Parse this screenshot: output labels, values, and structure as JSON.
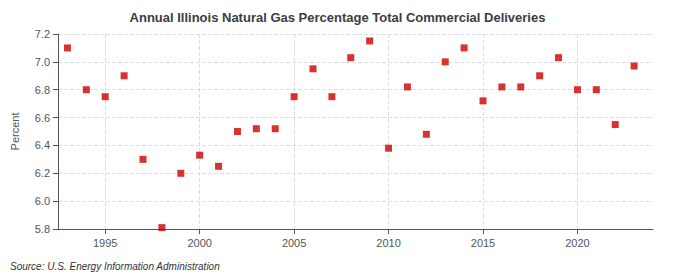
{
  "chart_data": {
    "type": "scatter",
    "title": "Annual Illinois Natural Gas Percentage Total Commercial Deliveries",
    "ylabel": "Percent",
    "annotations": [
      "Source: U.S. Energy Information Administration"
    ],
    "x": [
      1993,
      1994,
      1995,
      1996,
      1997,
      1998,
      1999,
      2000,
      2001,
      2002,
      2003,
      2004,
      2005,
      2006,
      2007,
      2008,
      2009,
      2010,
      2011,
      2012,
      2013,
      2014,
      2015,
      2016,
      2017,
      2018,
      2019,
      2020,
      2021,
      2022,
      2023
    ],
    "values": [
      7.1,
      6.8,
      6.75,
      6.9,
      6.3,
      5.81,
      6.2,
      6.33,
      6.25,
      6.5,
      6.52,
      6.52,
      6.75,
      6.95,
      6.75,
      7.03,
      7.15,
      6.38,
      6.82,
      6.48,
      7.0,
      7.1,
      6.72,
      6.82,
      6.82,
      6.9,
      7.03,
      6.8,
      6.8,
      6.55,
      6.97
    ],
    "color": "#cc0000",
    "marker": "square",
    "xlim": [
      1992.5,
      2024
    ],
    "xticks": [
      1995,
      2000,
      2005,
      2010,
      2015,
      2020
    ],
    "ylim": [
      5.8,
      7.2
    ],
    "yticks": [
      5.8,
      {
        "value": 6.0,
        "label": "6.0"
      },
      6.2,
      6.4,
      6.6,
      6.8,
      {
        "value": 7.0,
        "label": "7.0"
      },
      7.2
    ],
    "grid": true
  }
}
